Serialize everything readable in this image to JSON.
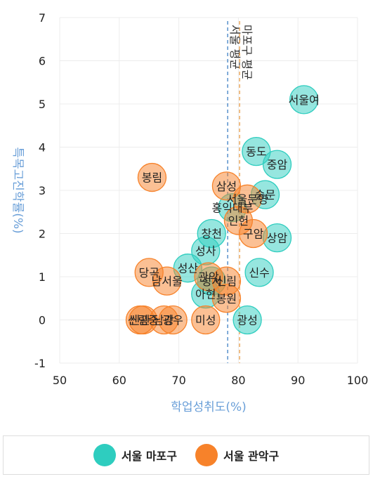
{
  "chart_data": {
    "type": "scatter",
    "xlabel": "학업성취도(%)",
    "ylabel": "특목고진학률(%)",
    "xlim": [
      50,
      100
    ],
    "ylim": [
      -1,
      7
    ],
    "xticks": [
      50,
      60,
      70,
      80,
      90,
      100
    ],
    "yticks": [
      -1,
      0,
      1,
      2,
      3,
      4,
      5,
      6,
      7
    ],
    "grid": true,
    "legend_position": "bottom",
    "colors": {
      "서울 마포구": "#2ecdbf",
      "서울 관악구": "#f7822a"
    },
    "reference_lines": [
      {
        "label": "서울 평균",
        "x": 78.2,
        "color": "#3d7fc4"
      },
      {
        "label": "마포구 평균",
        "x": 80.2,
        "color": "#e89a44"
      }
    ],
    "series": [
      {
        "name": "서울 마포구",
        "points": [
          {
            "label": "서울여",
            "x": 91,
            "y": 5.1
          },
          {
            "label": "동도",
            "x": 83,
            "y": 3.9
          },
          {
            "label": "중암",
            "x": 86.5,
            "y": 3.6
          },
          {
            "label": "숭문",
            "x": 84.5,
            "y": 2.9
          },
          {
            "label": "홍익대부",
            "x": 79,
            "y": 2.6
          },
          {
            "label": "상암",
            "x": 86.5,
            "y": 1.9
          },
          {
            "label": "창천",
            "x": 75.5,
            "y": 2.0
          },
          {
            "label": "성사",
            "x": 74.5,
            "y": 1.6
          },
          {
            "label": "신수",
            "x": 83.5,
            "y": 1.1
          },
          {
            "label": "성산",
            "x": 71.5,
            "y": 1.2
          },
          {
            "label": "성서",
            "x": 75.5,
            "y": 0.9
          },
          {
            "label": "아현",
            "x": 74.5,
            "y": 0.6
          },
          {
            "label": "광성",
            "x": 81.5,
            "y": 0.0
          }
        ]
      },
      {
        "name": "서울 관악구",
        "points": [
          {
            "label": "봉림",
            "x": 65.5,
            "y": 3.3
          },
          {
            "label": "삼성",
            "x": 78,
            "y": 3.1
          },
          {
            "label": "서울문영",
            "x": 81.5,
            "y": 2.8
          },
          {
            "label": "인헌",
            "x": 80,
            "y": 2.3
          },
          {
            "label": "구암",
            "x": 82.5,
            "y": 2.0
          },
          {
            "label": "당곡",
            "x": 65,
            "y": 1.1
          },
          {
            "label": "남서울",
            "x": 68,
            "y": 0.9
          },
          {
            "label": "관악",
            "x": 75,
            "y": 1.0
          },
          {
            "label": "신림",
            "x": 78,
            "y": 0.9
          },
          {
            "label": "봉원",
            "x": 78,
            "y": 0.5
          },
          {
            "label": "미성",
            "x": 74.5,
            "y": 0.0
          },
          {
            "label": "신관",
            "x": 63.5,
            "y": 0.0
          },
          {
            "label": "신림중",
            "x": 64,
            "y": 0.0
          },
          {
            "label": "남강",
            "x": 67.5,
            "y": 0.0
          },
          {
            "label": "광우",
            "x": 69,
            "y": 0.0
          }
        ]
      }
    ]
  }
}
